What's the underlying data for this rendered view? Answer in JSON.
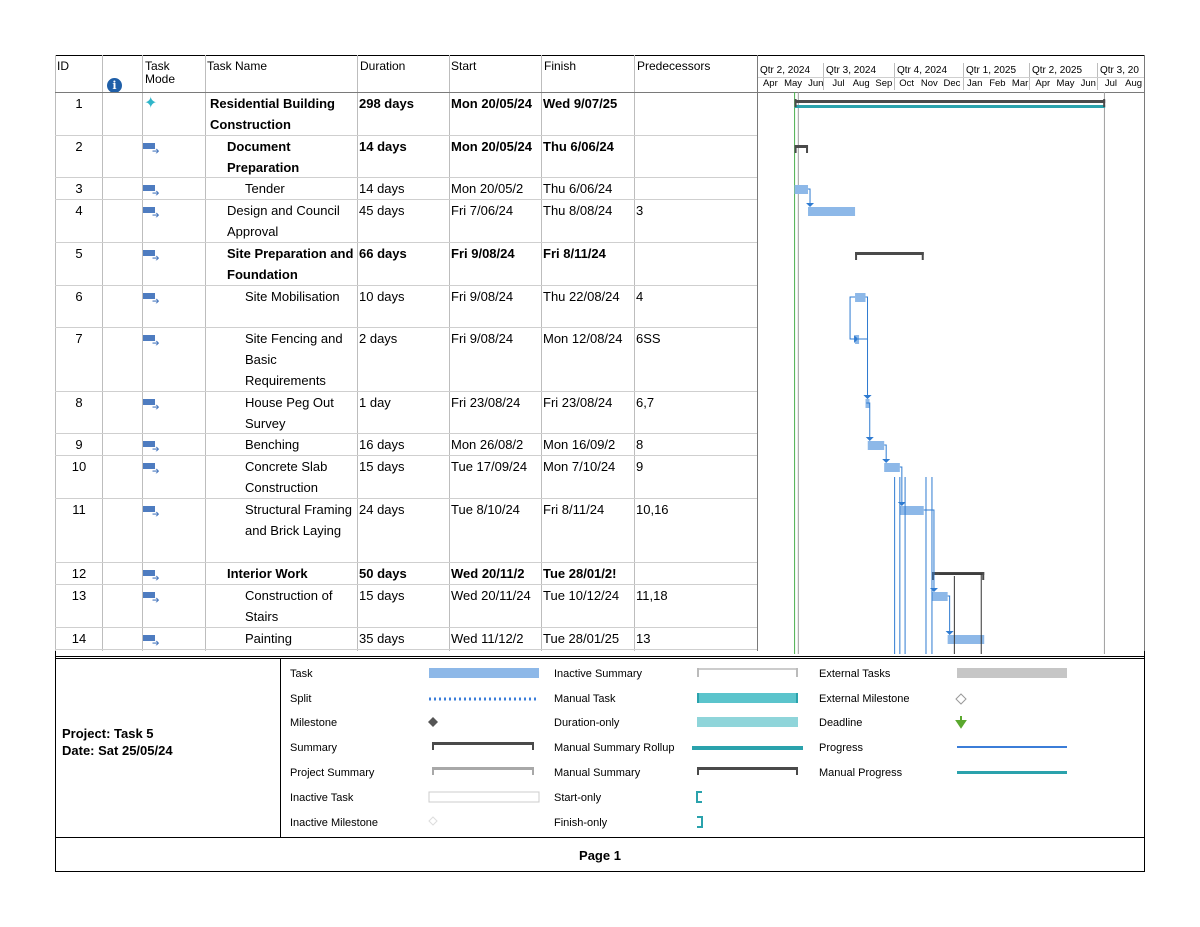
{
  "columns": {
    "id": "ID",
    "mode_line1": "Task",
    "mode_line2": "Mode",
    "name": "Task Name",
    "duration": "Duration",
    "start": "Start",
    "finish": "Finish",
    "predecessors": "Predecessors"
  },
  "timescale": {
    "quarters": [
      "Qtr 2, 2024",
      "Qtr 3, 2024",
      "Qtr 4, 2024",
      "Qtr 1, 2025",
      "Qtr 2, 2025",
      "Qtr 3, 20"
    ],
    "months": [
      "Apr",
      "May",
      "Jun",
      "Jul",
      "Aug",
      "Sep",
      "Oct",
      "Nov",
      "Dec",
      "Jan",
      "Feb",
      "Mar",
      "Apr",
      "May",
      "Jun",
      "Jul",
      "Aug"
    ]
  },
  "tasks": [
    {
      "id": "1",
      "mode": "manual",
      "name": "Residential Building Construction",
      "duration": "298 days",
      "start": "Mon 20/05/24",
      "finish": "Wed 9/07/25",
      "pred": "",
      "bold": true
    },
    {
      "id": "2",
      "mode": "auto",
      "name": "Document Preparation",
      "duration": "14 days",
      "start": "Mon 20/05/24",
      "finish": "Thu 6/06/24",
      "pred": "",
      "bold": true
    },
    {
      "id": "3",
      "mode": "auto",
      "name": "Tender",
      "duration": "14 days",
      "start": "Mon 20/05/2",
      "finish": "Thu 6/06/24",
      "pred": "",
      "bold": false
    },
    {
      "id": "4",
      "mode": "auto",
      "name": "Design and Council Approval",
      "duration": "45 days",
      "start": "Fri 7/06/24",
      "finish": "Thu 8/08/24",
      "pred": "3",
      "bold": false
    },
    {
      "id": "5",
      "mode": "auto",
      "name": "Site Preparation and Foundation",
      "duration": "66 days",
      "start": "Fri 9/08/24",
      "finish": "Fri 8/11/24",
      "pred": "",
      "bold": true
    },
    {
      "id": "6",
      "mode": "auto",
      "name": "Site Mobilisation",
      "duration": "10 days",
      "start": "Fri 9/08/24",
      "finish": "Thu 22/08/24",
      "pred": "4",
      "bold": false
    },
    {
      "id": "7",
      "mode": "auto",
      "name": "Site Fencing and Basic Requirements",
      "duration": "2 days",
      "start": "Fri 9/08/24",
      "finish": "Mon 12/08/24",
      "pred": "6SS",
      "bold": false
    },
    {
      "id": "8",
      "mode": "auto",
      "name": "House Peg Out Survey",
      "duration": "1 day",
      "start": "Fri 23/08/24",
      "finish": "Fri 23/08/24",
      "pred": "6,7",
      "bold": false
    },
    {
      "id": "9",
      "mode": "auto",
      "name": "Benching",
      "duration": "16 days",
      "start": "Mon 26/08/2",
      "finish": "Mon 16/09/2",
      "pred": "8",
      "bold": false
    },
    {
      "id": "10",
      "mode": "auto",
      "name": "Concrete Slab Construction",
      "duration": "15 days",
      "start": "Tue 17/09/24",
      "finish": "Mon 7/10/24",
      "pred": "9",
      "bold": false
    },
    {
      "id": "11",
      "mode": "auto",
      "name": "Structural Framing and Brick Laying",
      "duration": "24 days",
      "start": "Tue 8/10/24",
      "finish": "Fri 8/11/24",
      "pred": "10,16",
      "bold": false
    },
    {
      "id": "12",
      "mode": "auto",
      "name": "Interior Work",
      "duration": "50 days",
      "start": "Wed 20/11/2",
      "finish": "Tue 28/01/2!",
      "pred": "",
      "bold": true
    },
    {
      "id": "13",
      "mode": "auto",
      "name": "Construction of Stairs",
      "duration": "15 days",
      "start": "Wed 20/11/24",
      "finish": "Tue 10/12/24",
      "pred": "11,18",
      "bold": false
    },
    {
      "id": "14",
      "mode": "auto",
      "name": "Painting",
      "duration": "35 days",
      "start": "Wed 11/12/2",
      "finish": "Tue 28/01/25",
      "pred": "13",
      "bold": false
    }
  ],
  "legend": {
    "col1": [
      "Task",
      "Split",
      "Milestone",
      "Summary",
      "Project Summary",
      "Inactive Task",
      "Inactive Milestone"
    ],
    "col2": [
      "Inactive Summary",
      "Manual Task",
      "Duration-only",
      "Manual Summary Rollup",
      "Manual Summary",
      "Start-only",
      "Finish-only"
    ],
    "col3": [
      "External Tasks",
      "External Milestone",
      "Deadline",
      "Progress",
      "Manual Progress"
    ]
  },
  "footer": {
    "project": "Project: Task 5",
    "date": "Date: Sat 25/05/24",
    "page": "Page 1"
  },
  "colors": {
    "task_bar": "#8db8e8",
    "summary_bar": "#4a4a4a",
    "manual_summary_rollup": "#2aa2ac",
    "link": "#2f7bd1",
    "progress": "#3b7dd8",
    "deadline": "#5aa82e"
  }
}
